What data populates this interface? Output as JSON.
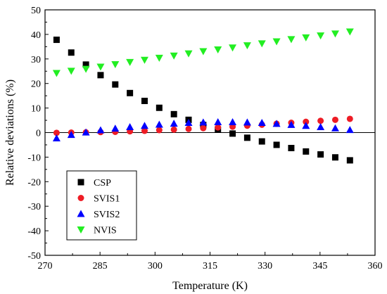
{
  "chart_data": {
    "type": "scatter",
    "xlabel": "Temperature (K)",
    "ylabel": "Relative deviations (%)",
    "xlim": [
      270,
      360
    ],
    "ylim": [
      -50,
      50
    ],
    "xticks": [
      "270",
      "285",
      "300",
      "315",
      "330",
      "345",
      "360"
    ],
    "yticks": [
      "-50",
      "-40",
      "-30",
      "-20",
      "-10",
      "0",
      "10",
      "20",
      "30",
      "40",
      "50"
    ],
    "zero_line": true,
    "grid": false,
    "legend_position": "bottom-left",
    "series": [
      {
        "name": "CSP",
        "marker": "square",
        "color": "#000000",
        "x": [
          273.15,
          277.15,
          281.15,
          285.15,
          289.15,
          293.15,
          297.15,
          301.15,
          305.15,
          309.15,
          313.15,
          317.15,
          321.15,
          325.15,
          329.15,
          333.15,
          337.15,
          341.15,
          345.15,
          349.15,
          353.15
        ],
        "y": [
          37.8,
          32.6,
          27.7,
          23.4,
          19.6,
          16.1,
          12.9,
          10.1,
          7.5,
          5.2,
          3.1,
          1.2,
          -0.4,
          -2.1,
          -3.6,
          -5.0,
          -6.3,
          -7.7,
          -8.9,
          -10.1,
          -11.3
        ]
      },
      {
        "name": "SVIS1",
        "marker": "circle",
        "color": "#ee1c25",
        "x": [
          273.15,
          277.15,
          281.15,
          285.15,
          289.15,
          293.15,
          297.15,
          301.15,
          305.15,
          309.15,
          313.15,
          317.15,
          321.15,
          325.15,
          329.15,
          333.15,
          337.15,
          341.15,
          345.15,
          349.15,
          353.15
        ],
        "y": [
          -0.1,
          0.0,
          0.1,
          0.2,
          0.3,
          0.5,
          0.7,
          1.0,
          1.2,
          1.5,
          1.8,
          2.1,
          2.4,
          2.8,
          3.2,
          3.6,
          4.0,
          4.4,
          4.8,
          5.2,
          5.6
        ]
      },
      {
        "name": "SVIS2",
        "marker": "triangle-up",
        "color": "#0000ff",
        "x": [
          273.15,
          277.15,
          281.15,
          285.15,
          289.15,
          293.15,
          297.15,
          301.15,
          305.15,
          309.15,
          313.15,
          317.15,
          321.15,
          325.15,
          329.15,
          333.15,
          337.15,
          341.15,
          345.15,
          349.15,
          353.15
        ],
        "y": [
          -2.3,
          -0.9,
          0.1,
          1.0,
          1.7,
          2.3,
          2.8,
          3.3,
          3.7,
          4.0,
          4.2,
          4.3,
          4.3,
          4.2,
          4.0,
          3.6,
          3.2,
          2.8,
          2.3,
          1.8,
          1.1
        ]
      },
      {
        "name": "NVIS",
        "marker": "triangle-down",
        "color": "#22ee22",
        "x": [
          273.15,
          277.15,
          281.15,
          285.15,
          289.15,
          293.15,
          297.15,
          301.15,
          305.15,
          309.15,
          313.15,
          317.15,
          321.15,
          325.15,
          329.15,
          333.15,
          337.15,
          341.15,
          345.15,
          349.15,
          353.15
        ],
        "y": [
          24.2,
          25.1,
          25.9,
          26.8,
          27.8,
          28.7,
          29.6,
          30.4,
          31.3,
          32.2,
          33.1,
          33.8,
          34.6,
          35.5,
          36.3,
          37.1,
          38.0,
          38.7,
          39.5,
          40.3,
          41.1
        ]
      }
    ]
  }
}
